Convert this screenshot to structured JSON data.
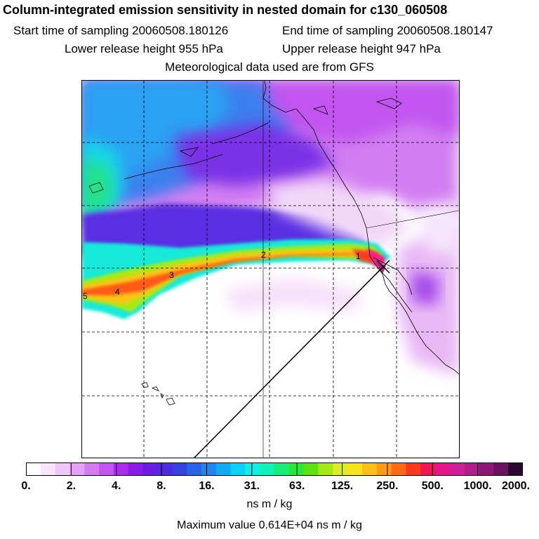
{
  "header": {
    "title": "Column-integrated emission sensitivity in nested domain for c130_060508",
    "start_time": "Start time of sampling 20060508.180126",
    "end_time": "End time of sampling 20060508.180147",
    "lower_height": "Lower release height  955 hPa",
    "upper_height": "Upper release height  947 hPa",
    "met_data": "Meteorological data used are from GFS"
  },
  "plume_labels": [
    "1",
    "2",
    "3",
    "4",
    "5"
  ],
  "colorbar": {
    "colors": [
      "#ffffff",
      "#f8e4fb",
      "#efc6f8",
      "#e3a3f5",
      "#d47bf1",
      "#c255ef",
      "#a92deb",
      "#8a1be8",
      "#6a1ce4",
      "#4c2be2",
      "#3541e0",
      "#2a63e6",
      "#1e86ef",
      "#12aaf5",
      "#0fd0f6",
      "#10efe6",
      "#12f2b4",
      "#17ee78",
      "#2ae838",
      "#5be412",
      "#a4ea18",
      "#dcee20",
      "#fae11e",
      "#ffbe18",
      "#ff9a14",
      "#ff6a12",
      "#fa3a1a",
      "#f11552",
      "#e6158a",
      "#cf1e9a",
      "#b11b8a",
      "#8e1677",
      "#6a1260",
      "#2a0830"
    ],
    "tick_labels": [
      "0.",
      "2.",
      "4.",
      "8.",
      "16.",
      "31.",
      "63.",
      "125.",
      "250.",
      "500.",
      "1000.",
      "2000."
    ],
    "unit": "ns m / kg"
  },
  "max_value_text": "Maximum value  0.614E+04 ns m / kg"
}
